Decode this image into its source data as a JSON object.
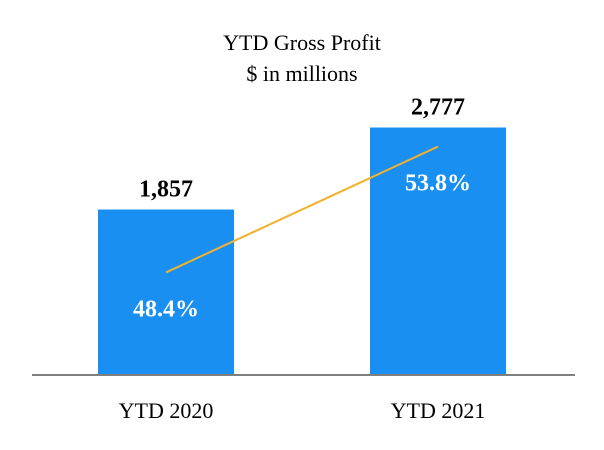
{
  "chart_data": {
    "type": "bar",
    "title": "YTD Gross Profit",
    "subtitle": "$ in millions",
    "categories": [
      "YTD 2020",
      "YTD 2021"
    ],
    "series": [
      {
        "values": [
          1857,
          2777
        ],
        "value_labels": [
          "1,857",
          "2,777"
        ],
        "color": "#1a8ff2"
      },
      {
        "type": "line",
        "values": [
          48.4,
          53.8
        ],
        "value_labels": [
          "48.4%",
          "53.8%"
        ],
        "unit": "%",
        "color": "#f2b12c"
      }
    ],
    "ylim": [
      0,
      3400
    ],
    "line_ylim": [
      44,
      57
    ],
    "grid": false,
    "legend": "none",
    "axis_color": "#7f7f7f"
  }
}
